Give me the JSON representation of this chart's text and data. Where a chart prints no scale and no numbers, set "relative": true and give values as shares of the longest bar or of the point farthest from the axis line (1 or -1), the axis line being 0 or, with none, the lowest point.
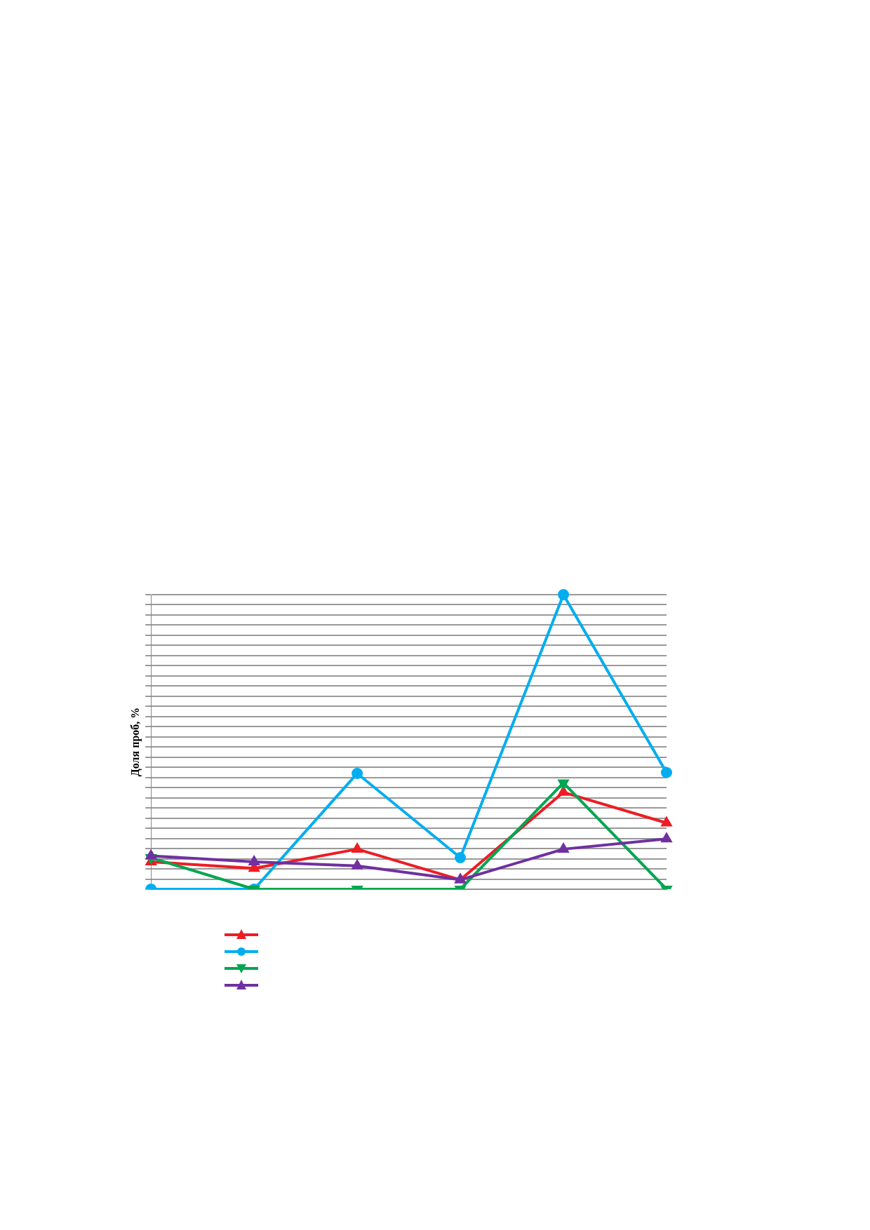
{
  "chart_data": {
    "type": "line",
    "relative": true,
    "ylabel": "Доля проб, %",
    "categories": [
      null,
      null,
      null,
      null,
      null,
      null
    ],
    "grid": "y",
    "line_style": "solid",
    "series": [
      {
        "color": "#ee1c24",
        "marker": "triangle",
        "values": [
          0.093,
          0.071,
          0.136,
          0.032,
          0.329,
          0.225
        ]
      },
      {
        "color": "#00aeef",
        "marker": "circle",
        "values": [
          0,
          0,
          0.393,
          0.107,
          1,
          0.396
        ]
      },
      {
        "color": "#00a651",
        "marker": "triangle-down",
        "values": [
          0.107,
          0,
          0,
          0,
          0.361,
          0
        ]
      },
      {
        "color": "#7030a0",
        "marker": "triangle",
        "values": [
          0.113,
          0.093,
          0.079,
          0.032,
          0.136,
          0.171
        ]
      }
    ]
  }
}
